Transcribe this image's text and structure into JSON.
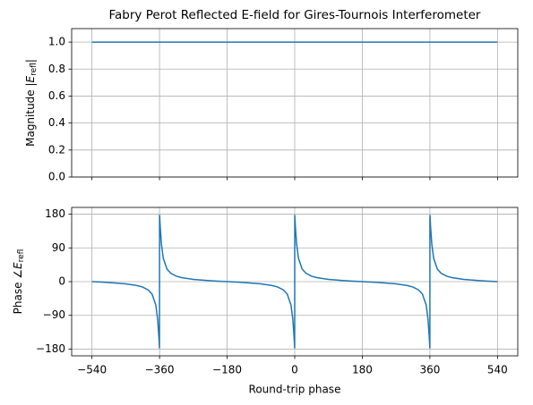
{
  "chart_data": [
    {
      "type": "line",
      "title": "Fabry Perot Reflected E-field for Gires-Tournois Interferometer",
      "ylabel": [
        "Magnitude |",
        "E",
        "refl",
        "|"
      ],
      "x": [
        -540,
        540
      ],
      "series": [
        {
          "color": "#1f77b4",
          "values": [
            1,
            1
          ]
        }
      ],
      "xlim": [
        -594,
        594
      ],
      "xticks": [
        -540,
        -360,
        -180,
        0,
        180,
        360,
        540
      ],
      "ylim": [
        0,
        1.1
      ],
      "yticks": [
        {
          "value": 0,
          "label": "0.0"
        },
        0.2,
        0.4,
        0.6,
        0.8,
        {
          "value": 1,
          "label": "1.0"
        }
      ],
      "grid": true
    },
    {
      "type": "line",
      "xlabel": "Round-trip phase",
      "ylabel": [
        "Phase ∠",
        "E",
        "refl"
      ],
      "x": [
        -540,
        -510,
        -480,
        -450,
        -420,
        -405,
        -390,
        -380,
        -370,
        -365,
        -362,
        -360.5,
        -360.1,
        -359.9,
        -359.5,
        -358,
        -355,
        -350,
        -340,
        -330,
        -315,
        -300,
        -270,
        -240,
        -210,
        -180,
        -150,
        -120,
        -90,
        -60,
        -45,
        -30,
        -20,
        -10,
        -5,
        -2,
        -0.5,
        -0.1,
        0.1,
        0.5,
        2,
        5,
        10,
        20,
        30,
        45,
        60,
        90,
        120,
        150,
        180,
        210,
        240,
        270,
        300,
        315,
        330,
        340,
        350,
        355,
        358,
        359.5,
        359.9,
        360.1,
        360.5,
        362,
        365,
        370,
        380,
        390,
        405,
        420,
        450,
        480,
        510,
        540
      ],
      "series": [
        {
          "color": "#1f77b4",
          "values": [
            0,
            -1.6,
            -3.5,
            -6.0,
            -10.4,
            -14.5,
            -22.2,
            -33.1,
            -62.2,
            -100.6,
            -143.3,
            -170.5,
            -178.1,
            178.1,
            170.5,
            143.3,
            100.6,
            62.2,
            33.1,
            22.2,
            14.5,
            10.4,
            6.0,
            3.5,
            1.6,
            0,
            -1.6,
            -3.5,
            -6.0,
            -10.4,
            -14.5,
            -22.2,
            -33.1,
            -62.2,
            -100.6,
            -143.3,
            -170.5,
            -178.1,
            178.1,
            170.5,
            143.3,
            100.6,
            62.2,
            33.1,
            22.2,
            14.5,
            10.4,
            6.0,
            3.5,
            1.6,
            0,
            -1.6,
            -3.5,
            -6.0,
            -10.4,
            -14.5,
            -22.2,
            -33.1,
            -62.2,
            -100.6,
            -143.3,
            -170.5,
            -178.1,
            178.1,
            170.5,
            143.3,
            100.6,
            62.2,
            33.1,
            22.2,
            14.5,
            10.4,
            6.0,
            3.5,
            1.6,
            0
          ]
        }
      ],
      "xlim": [
        -594,
        594
      ],
      "xticks": [
        {
          "value": -540,
          "label": "−540"
        },
        {
          "value": -360,
          "label": "−360"
        },
        {
          "value": -180,
          "label": "−180"
        },
        0,
        180,
        360,
        540
      ],
      "ylim": [
        -198,
        198
      ],
      "yticks": [
        {
          "value": -180,
          "label": "−180"
        },
        {
          "value": -90,
          "label": "−90"
        },
        0,
        90,
        180
      ],
      "grid": true
    }
  ]
}
